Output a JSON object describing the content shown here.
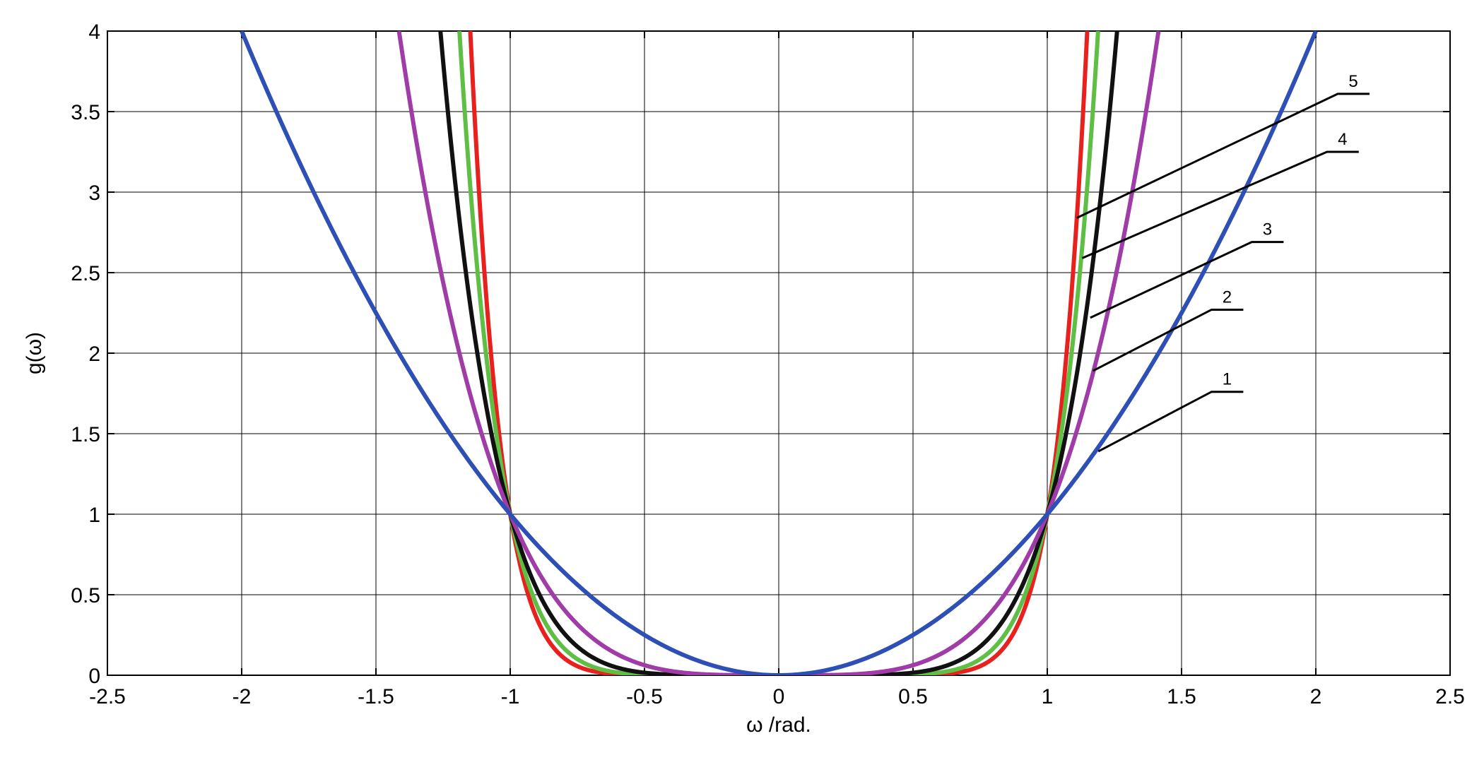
{
  "chart_data": {
    "type": "line",
    "xlabel": "ω /rad.",
    "ylabel": "g(ω)",
    "xlim": [
      -2.5,
      2.5
    ],
    "ylim": [
      0,
      4
    ],
    "x_ticks": [
      -2.5,
      -2,
      -1.5,
      -1,
      -0.5,
      0,
      0.5,
      1,
      1.5,
      2,
      2.5
    ],
    "y_ticks": [
      0,
      0.5,
      1,
      1.5,
      2,
      2.5,
      3,
      3.5,
      4
    ],
    "x_tick_labels": [
      "-2.5",
      "-2",
      "-1.5",
      "-1",
      "-0.5",
      "0",
      "0.5",
      "1",
      "1.5",
      "2",
      "2.5"
    ],
    "y_tick_labels": [
      "0",
      "0.5",
      "1",
      "1.5",
      "2",
      "2.5",
      "3",
      "3.5",
      "4"
    ],
    "grid": true,
    "series": [
      {
        "label": "1",
        "color": "#2e4fb5",
        "power": 2,
        "x": [
          -2,
          -1.5,
          -1,
          -0.5,
          0,
          0.5,
          1,
          1.5,
          2
        ],
        "y": [
          4,
          2.25,
          1,
          0.25,
          0,
          0.25,
          1,
          2.25,
          4
        ]
      },
      {
        "label": "2",
        "color": "#a03ca8",
        "power": 4,
        "x": [
          -1.41,
          -1.2,
          -1,
          -0.5,
          0,
          0.5,
          1,
          1.2,
          1.41
        ],
        "y": [
          4,
          2.07,
          1,
          0.06,
          0,
          0.06,
          1,
          2.07,
          4
        ]
      },
      {
        "label": "3",
        "color": "#111111",
        "power": 6,
        "x": [
          -1.26,
          -1.15,
          -1,
          -0.5,
          0,
          0.5,
          1,
          1.15,
          1.26
        ],
        "y": [
          4,
          2.31,
          1,
          0.02,
          0,
          0.02,
          1,
          2.31,
          4
        ]
      },
      {
        "label": "4",
        "color": "#5fbf45",
        "power": 8,
        "x": [
          -1.19,
          -1.1,
          -1,
          -0.5,
          0,
          0.5,
          1,
          1.1,
          1.19
        ],
        "y": [
          4,
          2.14,
          1,
          0,
          0,
          0,
          1,
          2.14,
          4
        ]
      },
      {
        "label": "5",
        "color": "#e8201e",
        "power": 10,
        "x": [
          -1.15,
          -1.08,
          -1,
          -0.5,
          0,
          0.5,
          1,
          1.08,
          1.15
        ],
        "y": [
          4,
          2.16,
          1,
          0,
          0,
          0,
          1,
          2.16,
          4
        ]
      }
    ],
    "callouts": [
      {
        "text": "1",
        "series": 0,
        "point": [
          1.19,
          1.39
        ],
        "label_pos": [
          1.73,
          1.76
        ]
      },
      {
        "text": "2",
        "series": 1,
        "point": [
          1.17,
          1.89
        ],
        "label_pos": [
          1.73,
          2.27
        ]
      },
      {
        "text": "3",
        "series": 2,
        "point": [
          1.16,
          2.22
        ],
        "label_pos": [
          1.88,
          2.69
        ]
      },
      {
        "text": "4",
        "series": 3,
        "point": [
          1.13,
          2.59
        ],
        "label_pos": [
          2.16,
          3.25
        ]
      },
      {
        "text": "5",
        "series": 4,
        "point": [
          1.11,
          2.84
        ],
        "label_pos": [
          2.2,
          3.61
        ]
      }
    ]
  }
}
